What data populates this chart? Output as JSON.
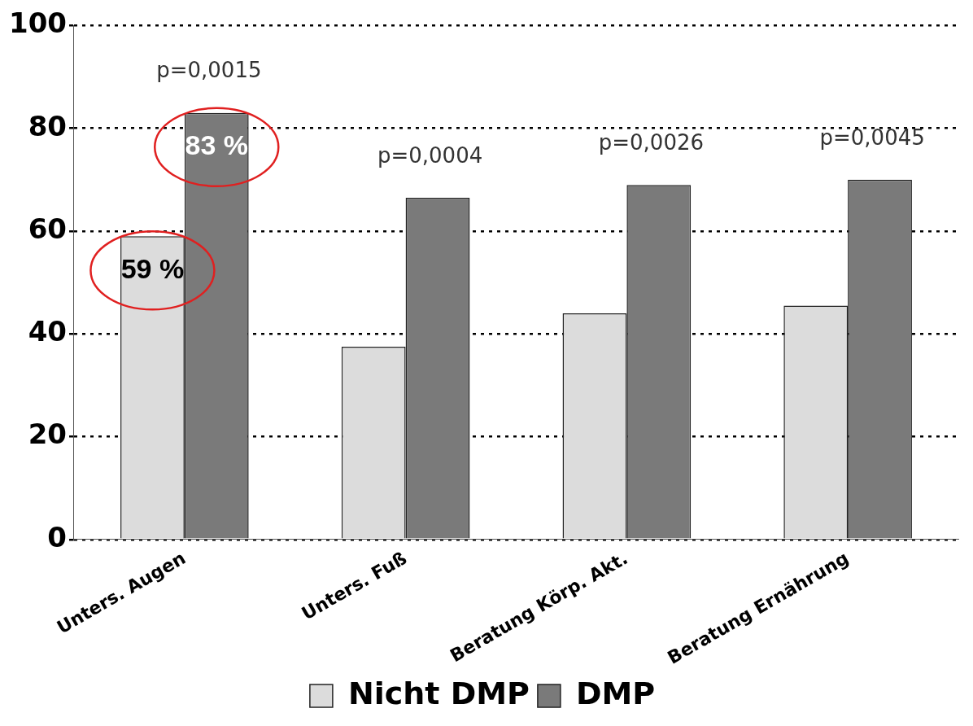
{
  "chart_data": {
    "type": "bar",
    "categories": [
      "Unters. Augen",
      "Unters. Fuß",
      "Beratung Körp. Akt.",
      "Beratung Ernährung"
    ],
    "series": [
      {
        "name": "Nicht DMP",
        "color": "#dcdcdc",
        "values": [
          59,
          37.5,
          44,
          45.5
        ],
        "value_labels": [
          "59 %",
          null,
          null,
          null
        ]
      },
      {
        "name": "DMP",
        "color": "#7a7a7a",
        "values": [
          83,
          66.5,
          69,
          70
        ],
        "value_labels": [
          "83 %",
          null,
          null,
          null
        ]
      }
    ],
    "ylim": [
      0,
      100
    ],
    "yticks": [
      0,
      20,
      40,
      60,
      80,
      100
    ],
    "grid": "y",
    "legend": "bottom",
    "annotations": [
      "p=0,0015",
      "p=0,0004",
      "p=0,0026",
      "p=0,0045"
    ]
  }
}
